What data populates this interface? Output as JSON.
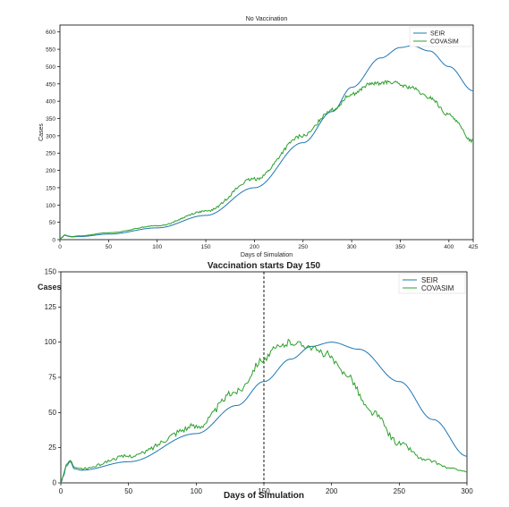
{
  "chart_data": [
    {
      "type": "line",
      "title": "No Vaccination",
      "xlabel": "Days of Simulation",
      "ylabel": "Cases",
      "xlim": [
        0,
        425
      ],
      "ylim": [
        0,
        620
      ],
      "xticks": [
        0,
        50,
        100,
        150,
        200,
        250,
        300,
        350,
        400,
        425
      ],
      "yticks": [
        0,
        50,
        100,
        150,
        200,
        250,
        300,
        350,
        400,
        450,
        500,
        550,
        600
      ],
      "legend_position": "top-right",
      "colors": {
        "SEIR": "#1f77b4",
        "COVASIM": "#2ca02c",
        "axis": "#000000"
      },
      "series": [
        {
          "name": "SEIR",
          "x": [
            0,
            2,
            5,
            8,
            12,
            20,
            50,
            100,
            150,
            200,
            250,
            280,
            300,
            330,
            350,
            362,
            380,
            400,
            425
          ],
          "y": [
            0,
            6,
            13,
            10,
            8,
            9,
            16,
            34,
            70,
            150,
            280,
            370,
            440,
            525,
            555,
            560,
            545,
            500,
            430
          ]
        },
        {
          "name": "COVASIM",
          "x": [
            0,
            2,
            5,
            8,
            12,
            20,
            50,
            100,
            150,
            200,
            250,
            280,
            300,
            320,
            340,
            360,
            380,
            400,
            425
          ],
          "y": [
            0,
            7,
            14,
            11,
            9,
            11,
            20,
            40,
            82,
            175,
            300,
            375,
            420,
            450,
            455,
            440,
            410,
            360,
            285
          ],
          "noise": 5
        }
      ]
    },
    {
      "type": "line",
      "title": "Vaccination starts Day 150",
      "xlabel": "Days of Simulation",
      "ylabel": "Cases",
      "xlim": [
        0,
        300
      ],
      "ylim": [
        0,
        150
      ],
      "xticks": [
        0,
        50,
        100,
        150,
        200,
        250,
        300
      ],
      "yticks": [
        0,
        25,
        50,
        75,
        100,
        125,
        150
      ],
      "vline": 150,
      "legend_position": "top-right",
      "colors": {
        "SEIR": "#1f77b4",
        "COVASIM": "#2ca02c",
        "axis": "#000000"
      },
      "series": [
        {
          "name": "SEIR",
          "x": [
            0,
            2,
            4,
            7,
            10,
            15,
            50,
            100,
            130,
            150,
            170,
            185,
            200,
            220,
            250,
            275,
            300
          ],
          "y": [
            0,
            5,
            12,
            15,
            10,
            9,
            15,
            35,
            55,
            72,
            88,
            97,
            100,
            95,
            72,
            45,
            19
          ]
        },
        {
          "name": "COVASIM",
          "x": [
            0,
            2,
            4,
            7,
            10,
            15,
            50,
            100,
            130,
            150,
            160,
            170,
            180,
            195,
            210,
            230,
            250,
            270,
            290,
            300
          ],
          "y": [
            0,
            6,
            13,
            16,
            11,
            10,
            19,
            40,
            65,
            88,
            96,
            100,
            98,
            92,
            78,
            50,
            28,
            16,
            10,
            8
          ],
          "noise": 2.5
        }
      ]
    }
  ]
}
